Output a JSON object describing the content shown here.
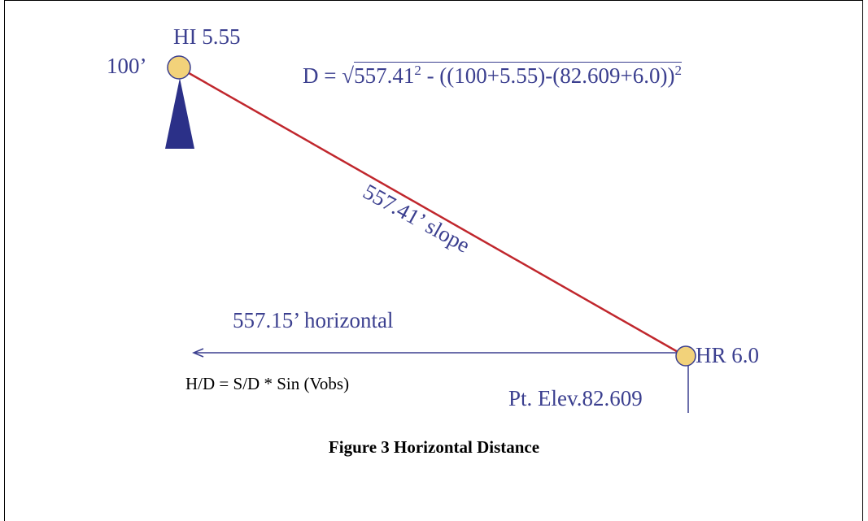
{
  "diagram": {
    "instrument_label": "HI 5.55",
    "station_elevation": "100’",
    "formula": {
      "prefix": "D = ",
      "radical": "√",
      "slope_value": "557.41",
      "power": "2",
      "middle": " - ((100+5.55)-(82.609+6.0))",
      "power2": "2"
    },
    "slope_label": "557.41’ slope",
    "horizontal_label": "557.15’ horizontal",
    "rod_label": "HR 6.0",
    "point_elevation": "Pt. Elev.82.609",
    "hd_formula": "H/D = S/D * Sin (Vobs)",
    "caption": "Figure 3 Horizontal Distance",
    "colors": {
      "slope_line": "#c0272d",
      "label_text": "#3b3f8f",
      "station_fill": "#f2d27a",
      "tripod_fill": "#2b3088",
      "arrow": "#3b3f8f"
    }
  }
}
